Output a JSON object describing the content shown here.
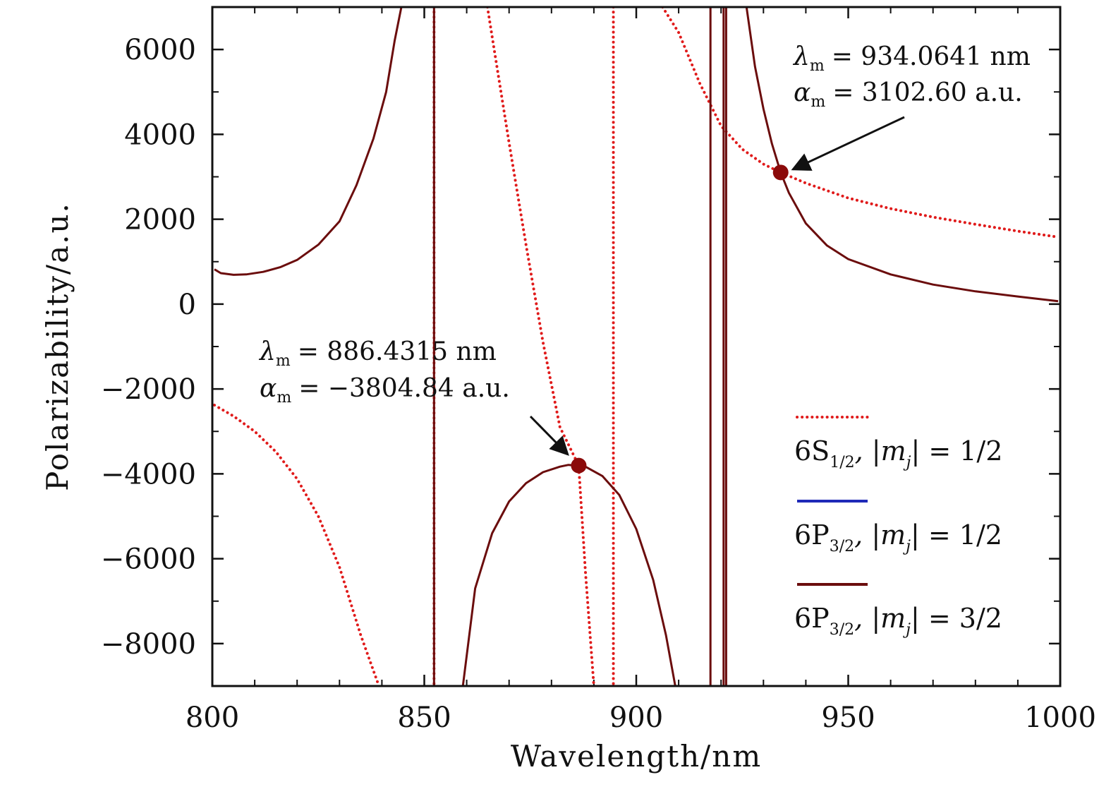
{
  "chart_data": {
    "type": "line",
    "title": "",
    "xlabel": "Wavelength/nm",
    "ylabel": "Polarizability/a.u.",
    "xlim": [
      800,
      1000
    ],
    "ylim": [
      -9000,
      7000
    ],
    "xticks": [
      800,
      850,
      900,
      950,
      1000
    ],
    "xtick_labels": [
      "800",
      "850",
      "900",
      "950",
      "1000"
    ],
    "yticks": [
      6000,
      4000,
      2000,
      0,
      -2000,
      -4000,
      -6000,
      -8000
    ],
    "ytick_labels": [
      "6000",
      "4000",
      "2000",
      "0",
      "−2000",
      "−4000",
      "−6000",
      "−8000"
    ],
    "grid": false,
    "legend_position": "right",
    "series": [
      {
        "name": "6S1/2, |mj| = 1/2",
        "style": "dotted",
        "color": "#e01b1b",
        "resonances": [
          852.3,
          894.6
        ],
        "segments": [
          {
            "x": [
              800.5,
              805,
              810,
              815,
              820,
              825,
              830,
              835,
              839.3
            ],
            "y": [
              -2380,
              -2640,
              -3000,
              -3480,
              -4120,
              -5000,
              -6200,
              -7800,
              -9000
            ]
          },
          {
            "x": [
              864.9,
              866,
              870,
              874,
              878,
              882,
              886.43,
              888,
              890.0
            ],
            "y": [
              7000,
              6300,
              3800,
              1400,
              -900,
              -2900,
              -3805,
              -6300,
              -9000
            ]
          },
          {
            "x": [
              906.2,
              910,
              915,
              920,
              925,
              930,
              934.06,
              940,
              950,
              960,
              970,
              980,
              990,
              999.5
            ],
            "y": [
              7000,
              6400,
              5200,
              4200,
              3650,
              3300,
              3102.6,
              2850,
              2500,
              2250,
              2050,
              1880,
              1720,
              1580
            ]
          }
        ]
      },
      {
        "name": "6P3/2, |mj| = 1/2",
        "style": "solid",
        "color": "#1f2ab8",
        "resonances": [],
        "segments": []
      },
      {
        "name": "6P3/2, |mj| = 3/2",
        "style": "solid",
        "color": "#6b0d0d",
        "resonances": [
          852.3,
          917.5,
          920.6,
          921.2
        ],
        "segments": [
          {
            "x": [
              800.5,
              802,
              805,
              808,
              812,
              816,
              820,
              825,
              830,
              834,
              838,
              841,
              843,
              844.6
            ],
            "y": [
              820,
              730,
              690,
              700,
              760,
              870,
              1040,
              1400,
              1950,
              2800,
              3900,
              5000,
              6200,
              7000
            ]
          },
          {
            "x": [
              859.1,
              862,
              866,
              870,
              874,
              878,
              882,
              884,
              886.43,
              888,
              892,
              896,
              900,
              904,
              907,
              909.2
            ],
            "y": [
              -9000,
              -6700,
              -5400,
              -4650,
              -4220,
              -3960,
              -3830,
              -3790,
              -3805,
              -3830,
              -4050,
              -4500,
              -5300,
              -6500,
              -7800,
              -9000
            ]
          },
          {
            "x": [
              926.0,
              928,
              930,
              932,
              934.06,
              936,
              940,
              945,
              950,
              960,
              970,
              980,
              990,
              999.5
            ],
            "y": [
              7000,
              5600,
              4600,
              3780,
              3102.6,
              2620,
              1900,
              1380,
              1060,
              700,
              460,
              300,
              180,
              70
            ]
          }
        ]
      }
    ],
    "markers": [
      {
        "x": 886.4315,
        "y": -3804.84,
        "color": "#8b0a0a"
      },
      {
        "x": 934.0641,
        "y": 3102.6,
        "color": "#8b0a0a"
      }
    ]
  },
  "annotations": [
    {
      "lambda_label": "λ",
      "lambda_sub": "m",
      "lambda_value": "= 886.4315 nm",
      "alpha_label": "α",
      "alpha_sub": "m",
      "alpha_value": "= −3804.84 a.u."
    },
    {
      "lambda_label": "λ",
      "lambda_sub": "m",
      "lambda_value": "= 934.0641 nm",
      "alpha_label": "α",
      "alpha_sub": "m",
      "alpha_value": "= 3102.60 a.u."
    }
  ],
  "legend": [
    {
      "state": "6S",
      "sub": "1/2",
      "rest": ", |m",
      "mj_sub": "j",
      "value": "| = 1/2",
      "color": "#e01b1b",
      "style": "dotted"
    },
    {
      "state": "6P",
      "sub": "3/2",
      "rest": ", |m",
      "mj_sub": "j",
      "value": "| = 1/2",
      "color": "#1f2ab8",
      "style": "solid"
    },
    {
      "state": "6P",
      "sub": "3/2",
      "rest": ", |m",
      "mj_sub": "j",
      "value": "| = 3/2",
      "color": "#6b0d0d",
      "style": "solid"
    }
  ]
}
